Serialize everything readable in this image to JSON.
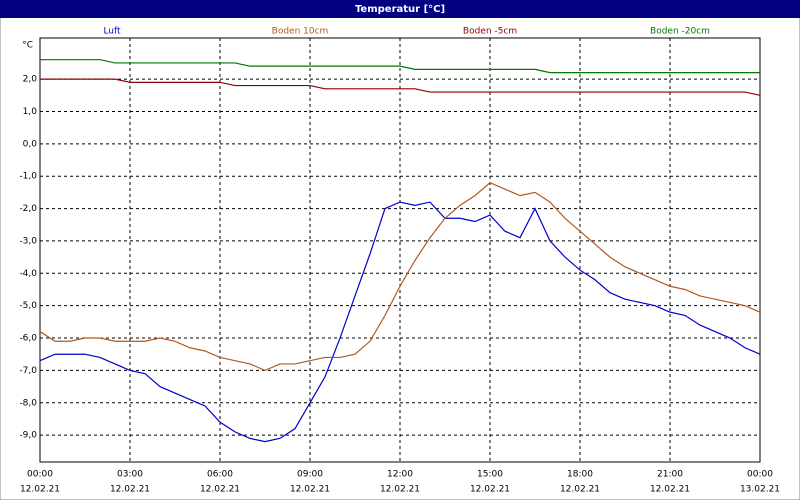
{
  "chart_data": {
    "type": "line",
    "title": "Temperatur [°C]",
    "y_unit": "°C",
    "x": [
      0,
      0.5,
      1,
      1.5,
      2,
      2.5,
      3,
      3.5,
      4,
      4.5,
      5,
      5.5,
      6,
      6.5,
      7,
      7.5,
      8,
      8.5,
      9,
      9.5,
      10,
      10.5,
      11,
      11.5,
      12,
      12.5,
      13,
      13.5,
      14,
      14.5,
      15,
      15.5,
      16,
      16.5,
      17,
      17.5,
      18,
      18.5,
      19,
      19.5,
      20,
      20.5,
      21,
      21.5,
      22,
      22.5,
      23,
      23.5,
      24
    ],
    "xlim": [
      0,
      24
    ],
    "xticks": [
      {
        "value": 0,
        "label": "00:00"
      },
      {
        "value": 3,
        "label": "03:00"
      },
      {
        "value": 6,
        "label": "06:00"
      },
      {
        "value": 9,
        "label": "09:00"
      },
      {
        "value": 12,
        "label": "12:00"
      },
      {
        "value": 15,
        "label": "15:00"
      },
      {
        "value": 18,
        "label": "18:00"
      },
      {
        "value": 21,
        "label": "21:00"
      },
      {
        "value": 24,
        "label": "00:00"
      }
    ],
    "xtick_dates": [
      "12.02.21",
      "12.02.21",
      "12.02.21",
      "12.02.21",
      "12.02.21",
      "12.02.21",
      "12.02.21",
      "12.02.21",
      "13.02.21"
    ],
    "ylim": [
      -9.83,
      3.27
    ],
    "yticks": [
      {
        "value": 2,
        "label": "2,0"
      },
      {
        "value": 1,
        "label": "1,0"
      },
      {
        "value": 0,
        "label": "0,0"
      },
      {
        "value": -1,
        "label": "-1,0"
      },
      {
        "value": -2,
        "label": "-2,0"
      },
      {
        "value": -3,
        "label": "-3,0"
      },
      {
        "value": -4,
        "label": "-4,0"
      },
      {
        "value": -5,
        "label": "-5,0"
      },
      {
        "value": -6,
        "label": "-6,0"
      },
      {
        "value": -7,
        "label": "-7,0"
      },
      {
        "value": -8,
        "label": "-8,0"
      },
      {
        "value": -9,
        "label": "-9,0"
      }
    ],
    "grid": true,
    "series": [
      {
        "name": "Luft",
        "color": "#0000cc",
        "values": [
          -6.7,
          -6.5,
          -6.5,
          -6.5,
          -6.6,
          -6.8,
          -7.0,
          -7.1,
          -7.5,
          -7.7,
          -7.9,
          -8.1,
          -8.6,
          -8.9,
          -9.1,
          -9.2,
          -9.1,
          -8.8,
          -8.0,
          -7.2,
          -6.0,
          -4.7,
          -3.4,
          -2.0,
          -1.8,
          -1.9,
          -1.8,
          -2.3,
          -2.3,
          -2.4,
          -2.2,
          -2.7,
          -2.9,
          -2.0,
          -3.0,
          -3.5,
          -3.9,
          -4.2,
          -4.6,
          -4.8,
          -4.9,
          -5.0,
          -5.2,
          -5.3,
          -5.6,
          -5.8,
          -6.0,
          -6.3,
          -6.5
        ]
      },
      {
        "name": "Boden 10cm",
        "color": "#b05a1e",
        "values": [
          -5.8,
          -6.1,
          -6.1,
          -6.0,
          -6.0,
          -6.1,
          -6.1,
          -6.1,
          -6.0,
          -6.1,
          -6.3,
          -6.4,
          -6.6,
          -6.7,
          -6.8,
          -7.0,
          -6.8,
          -6.8,
          -6.7,
          -6.6,
          -6.6,
          -6.5,
          -6.1,
          -5.3,
          -4.4,
          -3.6,
          -2.9,
          -2.3,
          -1.9,
          -1.6,
          -1.2,
          -1.4,
          -1.6,
          -1.5,
          -1.8,
          -2.3,
          -2.7,
          -3.1,
          -3.5,
          -3.8,
          -4.0,
          -4.2,
          -4.4,
          -4.5,
          -4.7,
          -4.8,
          -4.9,
          -5.0,
          -5.2
        ]
      },
      {
        "name": "Boden -5cm",
        "color": "#8b0000",
        "values": [
          2.0,
          2.0,
          2.0,
          2.0,
          2.0,
          2.0,
          1.9,
          1.9,
          1.9,
          1.9,
          1.9,
          1.9,
          1.9,
          1.8,
          1.8,
          1.8,
          1.8,
          1.8,
          1.8,
          1.7,
          1.7,
          1.7,
          1.7,
          1.7,
          1.7,
          1.7,
          1.6,
          1.6,
          1.6,
          1.6,
          1.6,
          1.6,
          1.6,
          1.6,
          1.6,
          1.6,
          1.6,
          1.6,
          1.6,
          1.6,
          1.6,
          1.6,
          1.6,
          1.6,
          1.6,
          1.6,
          1.6,
          1.6,
          1.5
        ]
      },
      {
        "name": "Boden -20cm",
        "color": "#007700",
        "values": [
          2.6,
          2.6,
          2.6,
          2.6,
          2.6,
          2.5,
          2.5,
          2.5,
          2.5,
          2.5,
          2.5,
          2.5,
          2.5,
          2.5,
          2.4,
          2.4,
          2.4,
          2.4,
          2.4,
          2.4,
          2.4,
          2.4,
          2.4,
          2.4,
          2.4,
          2.3,
          2.3,
          2.3,
          2.3,
          2.3,
          2.3,
          2.3,
          2.3,
          2.3,
          2.2,
          2.2,
          2.2,
          2.2,
          2.2,
          2.2,
          2.2,
          2.2,
          2.2,
          2.2,
          2.2,
          2.2,
          2.2,
          2.2,
          2.2
        ]
      }
    ]
  }
}
